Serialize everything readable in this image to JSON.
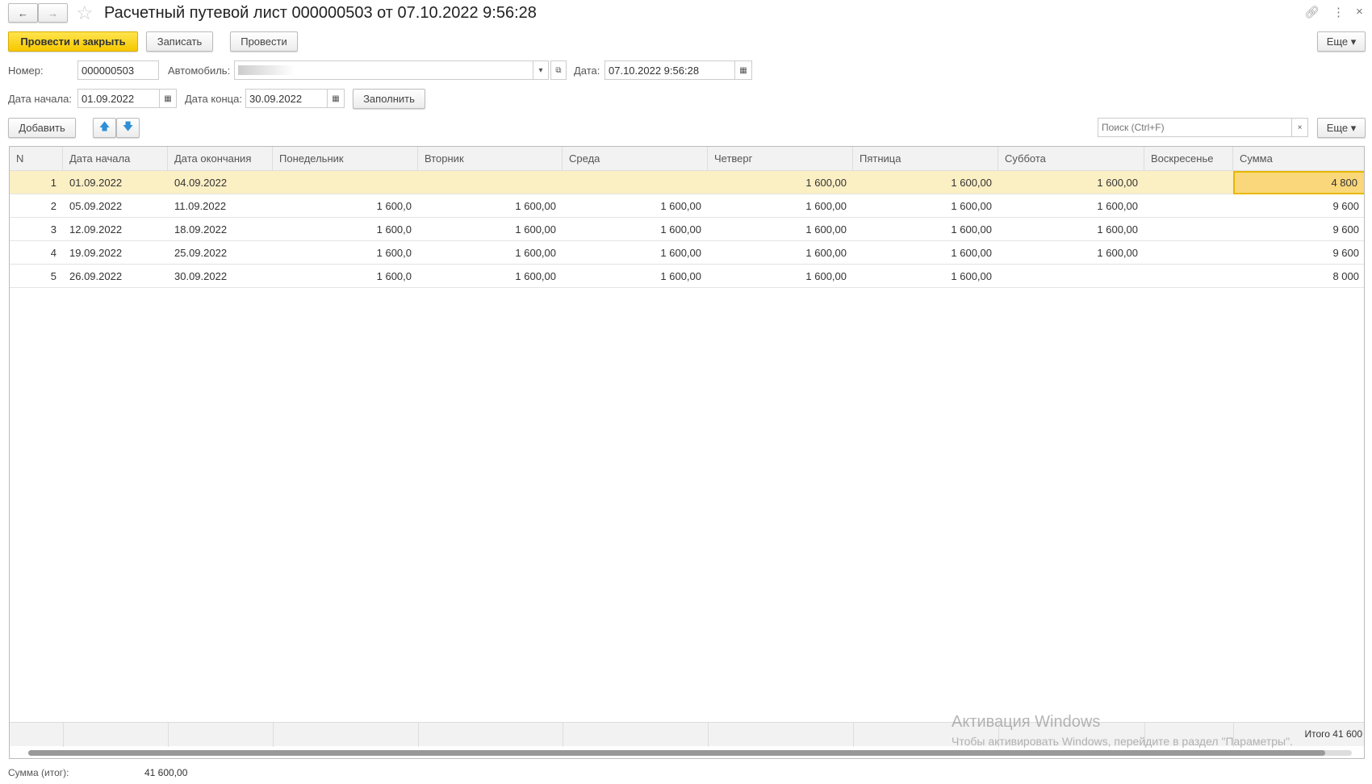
{
  "window": {
    "title": "Расчетный путевой лист 000000503 от 07.10.2022 9:56:28"
  },
  "toolbar": {
    "post_close": "Провести и закрыть",
    "save": "Записать",
    "post": "Провести",
    "more": "Еще"
  },
  "form": {
    "number_label": "Номер:",
    "number": "000000503",
    "car_label": "Автомобиль:",
    "car": "",
    "date_label": "Дата:",
    "date": "07.10.2022  9:56:28",
    "start_label": "Дата начала:",
    "start": "01.09.2022",
    "end_label": "Дата конца:",
    "end": "30.09.2022",
    "fill": "Заполнить"
  },
  "table_toolbar": {
    "add": "Добавить",
    "search_placeholder": "Поиск (Ctrl+F)",
    "more": "Еще"
  },
  "table": {
    "columns": [
      "N",
      "Дата начала",
      "Дата окончания",
      "Понедельник",
      "Вторник",
      "Среда",
      "Четверг",
      "Пятница",
      "Суббота",
      "Воскресенье",
      "Сумма"
    ],
    "rows": [
      [
        "1",
        "01.09.2022",
        "04.09.2022",
        "",
        "",
        "",
        "1 600,00",
        "1 600,00",
        "1 600,00",
        "",
        "4 800"
      ],
      [
        "2",
        "05.09.2022",
        "11.09.2022",
        "1 600,0",
        "1 600,00",
        "1 600,00",
        "1 600,00",
        "1 600,00",
        "1 600,00",
        "",
        "9 600"
      ],
      [
        "3",
        "12.09.2022",
        "18.09.2022",
        "1 600,0",
        "1 600,00",
        "1 600,00",
        "1 600,00",
        "1 600,00",
        "1 600,00",
        "",
        "9 600"
      ],
      [
        "4",
        "19.09.2022",
        "25.09.2022",
        "1 600,0",
        "1 600,00",
        "1 600,00",
        "1 600,00",
        "1 600,00",
        "1 600,00",
        "",
        "9 600"
      ],
      [
        "5",
        "26.09.2022",
        "30.09.2022",
        "1 600,0",
        "1 600,00",
        "1 600,00",
        "1 600,00",
        "1 600,00",
        "",
        "",
        "8 000"
      ]
    ],
    "footer_total": "Итого 41 600"
  },
  "summary": {
    "label": "Сумма (итог):",
    "value": "41 600,00"
  },
  "watermark": {
    "title": "Активация Windows",
    "text": "Чтобы активировать Windows, перейдите в раздел \"Параметры\"."
  },
  "colors": {
    "accent": "#f6c800",
    "selected_row": "#fbefc4"
  }
}
